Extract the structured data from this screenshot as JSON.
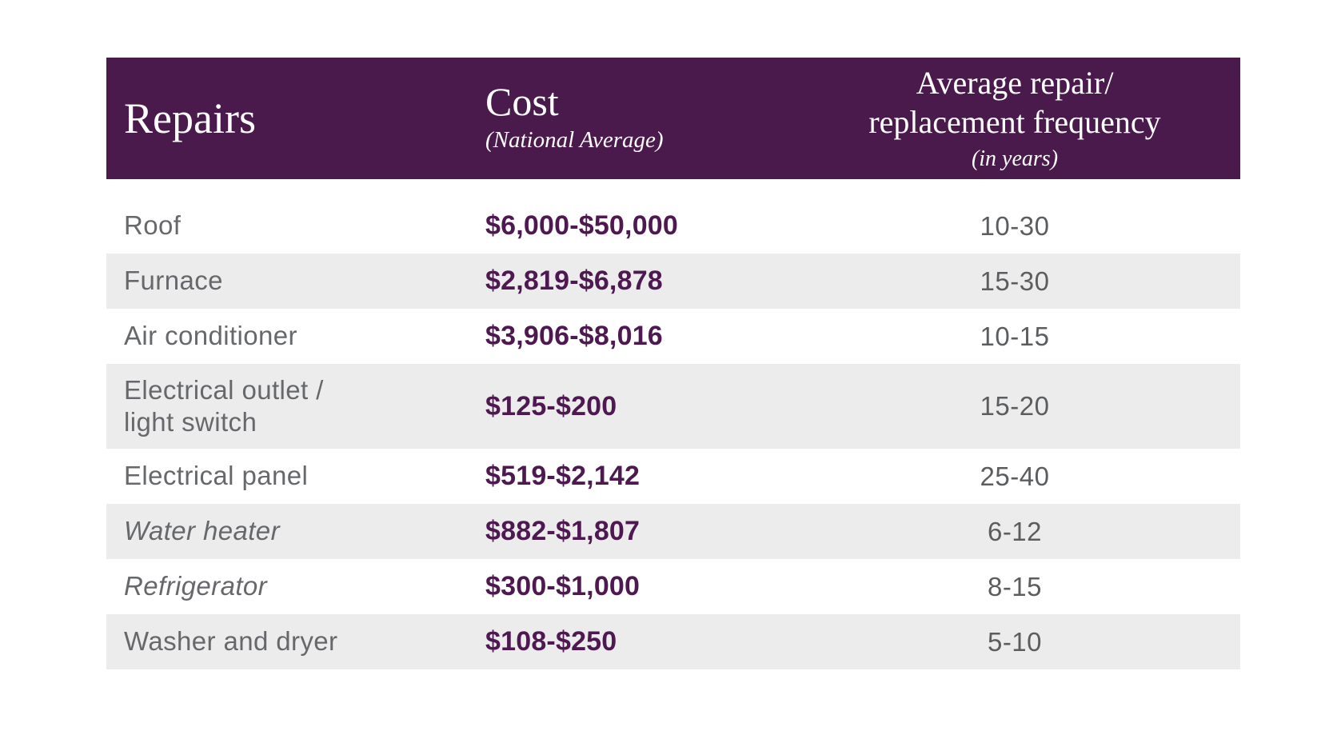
{
  "colors": {
    "header_background": "#4a1a4d",
    "header_text": "#ffffff",
    "alt_row_background": "#ececec",
    "repair_label_text": "#67686b",
    "cost_value_text": "#4e1950",
    "frequency_text": "#5b5d5f",
    "page_background": "#ffffff"
  },
  "table": {
    "header": {
      "repairs": "Repairs",
      "cost_title": "Cost",
      "cost_subtitle": "(National Average)",
      "freq_line1": "Average repair/",
      "freq_line2": "replacement frequency",
      "freq_subtitle": "(in years)"
    },
    "rows": [
      {
        "repair": "Roof",
        "cost": "$6,000-$50,000",
        "frequency": "10-30"
      },
      {
        "repair": "Furnace",
        "cost": "$2,819-$6,878",
        "frequency": "15-30"
      },
      {
        "repair": "Air conditioner",
        "cost": "$3,906-$8,016",
        "frequency": "10-15"
      },
      {
        "repair_line1": "Electrical outlet /",
        "repair_line2": "light switch",
        "cost": "$125-$200",
        "frequency": "15-20"
      },
      {
        "repair": "Electrical panel",
        "cost": "$519-$2,142",
        "frequency": "25-40"
      },
      {
        "repair": "Water heater",
        "cost": "$882-$1,807",
        "frequency": "6-12"
      },
      {
        "repair": "Refrigerator",
        "cost": "$300-$1,000",
        "frequency": "8-15"
      },
      {
        "repair": "Washer and dryer",
        "cost": "$108-$250",
        "frequency": "5-10"
      }
    ]
  },
  "chart_data": {
    "type": "table",
    "title": "",
    "columns": [
      "Repairs",
      "Cost (National Average)",
      "Average repair/replacement frequency (in years)"
    ],
    "rows": [
      [
        "Roof",
        "$6,000-$50,000",
        "10-30"
      ],
      [
        "Furnace",
        "$2,819-$6,878",
        "15-30"
      ],
      [
        "Air conditioner",
        "$3,906-$8,016",
        "10-15"
      ],
      [
        "Electrical outlet / light switch",
        "$125-$200",
        "15-20"
      ],
      [
        "Electrical panel",
        "$519-$2,142",
        "25-40"
      ],
      [
        "Water heater",
        "$882-$1,807",
        "6-12"
      ],
      [
        "Refrigerator",
        "$300-$1,000",
        "8-15"
      ],
      [
        "Washer and dryer",
        "$108-$250",
        "5-10"
      ]
    ],
    "cost_ranges_usd": [
      {
        "item": "Roof",
        "min": 6000,
        "max": 50000,
        "freq_years_min": 10,
        "freq_years_max": 30
      },
      {
        "item": "Furnace",
        "min": 2819,
        "max": 6878,
        "freq_years_min": 15,
        "freq_years_max": 30
      },
      {
        "item": "Air conditioner",
        "min": 3906,
        "max": 8016,
        "freq_years_min": 10,
        "freq_years_max": 15
      },
      {
        "item": "Electrical outlet / light switch",
        "min": 125,
        "max": 200,
        "freq_years_min": 15,
        "freq_years_max": 20
      },
      {
        "item": "Electrical panel",
        "min": 519,
        "max": 2142,
        "freq_years_min": 25,
        "freq_years_max": 40
      },
      {
        "item": "Water heater",
        "min": 882,
        "max": 1807,
        "freq_years_min": 6,
        "freq_years_max": 12
      },
      {
        "item": "Refrigerator",
        "min": 300,
        "max": 1000,
        "freq_years_min": 8,
        "freq_years_max": 15
      },
      {
        "item": "Washer and dryer",
        "min": 108,
        "max": 250,
        "freq_years_min": 5,
        "freq_years_max": 10
      }
    ],
    "layout": {
      "header_style": "dark-purple band, white serif text",
      "row_striping": "white / light gray alternating",
      "grid": false,
      "legend": "none"
    }
  }
}
